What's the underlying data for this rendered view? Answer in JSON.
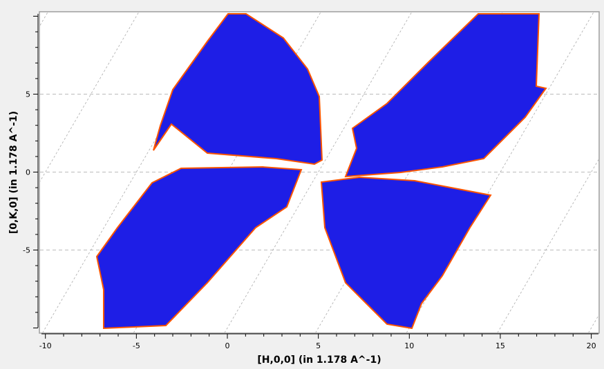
{
  "chart_data": {
    "type": "heatmap",
    "title": "",
    "xlabel": "[H,0,0] (in 1.178 A^-1)",
    "ylabel": "[0,K,0] (in 1.178 A^-1)",
    "xlim": [
      -10.3,
      20.3
    ],
    "ylim": [
      -10.4,
      10.4
    ],
    "xticks": [
      -10,
      -5,
      0,
      5,
      10,
      15,
      20
    ],
    "xtick_labels": [
      "-10",
      "-5",
      "0",
      "5",
      "10",
      "15",
      "20"
    ],
    "yticks": [
      -5,
      0,
      5
    ],
    "ytick_labels": [
      "-5",
      "0",
      "5"
    ],
    "grid": true,
    "grid_style": "dashed, non-orthogonal (skewed) grid",
    "colormap": [
      "#0000ff",
      "#3333dd",
      "#888888",
      "#dddd00",
      "#ff6600",
      "#ff0000"
    ],
    "background_color": "#ffffff"
  }
}
